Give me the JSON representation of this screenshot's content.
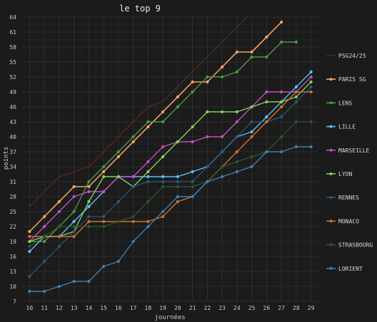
{
  "chart_data": {
    "type": "line",
    "title": "le top 9",
    "xlabel": "journées",
    "ylabel": "points",
    "x": [
      10,
      11,
      12,
      13,
      14,
      15,
      16,
      17,
      18,
      19,
      20,
      21,
      22,
      23,
      24,
      25,
      26,
      27,
      28,
      29
    ],
    "xlim": [
      9.5,
      29.5
    ],
    "ylim": [
      7,
      64
    ],
    "yticks": [
      7,
      10,
      13,
      16,
      19,
      22,
      25,
      28,
      31,
      34,
      37,
      40,
      43,
      46,
      49,
      52,
      55,
      58,
      61,
      64
    ],
    "grid": true,
    "legend_position": "right",
    "series": [
      {
        "name": "PSG24/25",
        "color": "#8b2a1e",
        "markers": false,
        "width": 0.8,
        "x": [
          10,
          11,
          12,
          13,
          14,
          15,
          16,
          17,
          18,
          19,
          20,
          21,
          22,
          23,
          24,
          25
        ],
        "values": [
          26,
          29,
          32,
          33,
          34,
          37,
          40,
          43,
          46,
          47,
          50,
          53,
          56,
          59,
          62,
          65
        ]
      },
      {
        "name": "PARIS SG",
        "color": "#f4a261",
        "markers": true,
        "width": 1.6,
        "x": [
          10,
          11,
          12,
          13,
          14,
          15,
          16,
          17,
          18,
          19,
          20,
          21,
          22,
          23,
          24,
          25,
          26,
          27
        ],
        "values": [
          21,
          24,
          27,
          30,
          30,
          33,
          36,
          39,
          42,
          45,
          48,
          51,
          51,
          54,
          57,
          57,
          60,
          63
        ]
      },
      {
        "name": "LENS",
        "color": "#4a9a46",
        "markers": true,
        "width": 1.4,
        "x": [
          10,
          11,
          12,
          13,
          14,
          15,
          16,
          17,
          18,
          19,
          20,
          21,
          22,
          23,
          24,
          25,
          26,
          27,
          28
        ],
        "values": [
          19,
          19,
          22,
          25,
          31,
          34,
          37,
          40,
          43,
          43,
          46,
          49,
          52,
          52,
          53,
          56,
          56,
          59,
          59
        ]
      },
      {
        "name": "LILLE",
        "color": "#5bc0f8",
        "markers": true,
        "width": 1.4,
        "x": [
          10,
          11,
          12,
          13,
          14,
          15,
          16,
          17,
          18,
          19,
          20,
          21,
          22,
          23,
          24,
          25,
          26,
          27,
          28,
          29
        ],
        "values": [
          17,
          20,
          20,
          23,
          26,
          29,
          32,
          32,
          32,
          32,
          32,
          33,
          34,
          37,
          40,
          41,
          44,
          47,
          50,
          53
        ]
      },
      {
        "name": "MARSEILLE",
        "color": "#c050c0",
        "markers": true,
        "width": 1.4,
        "x": [
          10,
          11,
          12,
          13,
          14,
          15,
          16,
          17,
          18,
          19,
          20,
          21,
          22,
          23,
          24,
          25,
          26,
          27,
          28,
          29
        ],
        "values": [
          19,
          22,
          25,
          28,
          29,
          29,
          32,
          32,
          35,
          38,
          39,
          39,
          40,
          40,
          43,
          46,
          49,
          49,
          49,
          52
        ]
      },
      {
        "name": "LYON",
        "color": "#86d05a",
        "markers": true,
        "width": 1.4,
        "x": [
          10,
          11,
          12,
          13,
          14,
          15,
          16,
          17,
          18,
          19,
          20,
          21,
          22,
          23,
          24,
          25,
          26,
          27,
          28,
          29
        ],
        "values": [
          19,
          20,
          20,
          21,
          27,
          32,
          32,
          30,
          33,
          36,
          39,
          42,
          45,
          45,
          45,
          46,
          47,
          47,
          48,
          51
        ]
      },
      {
        "name": "RENNES",
        "color": "#2d5a7a",
        "markers": true,
        "width": 1.2,
        "x": [
          10,
          11,
          12,
          13,
          14,
          15,
          16,
          17,
          18,
          19,
          20,
          21,
          22,
          23,
          24,
          25,
          26,
          27,
          28,
          29
        ],
        "values": [
          12,
          15,
          18,
          21,
          24,
          24,
          27,
          30,
          31,
          31,
          31,
          31,
          34,
          37,
          40,
          43,
          43,
          44,
          47,
          50
        ]
      },
      {
        "name": "MONACO",
        "color": "#d0702a",
        "markers": true,
        "width": 1.4,
        "x": [
          10,
          11,
          12,
          13,
          14,
          15,
          16,
          17,
          18,
          19,
          20,
          21,
          22,
          23,
          24,
          25,
          26,
          27,
          28,
          29
        ],
        "values": [
          20,
          20,
          20,
          20,
          23,
          23,
          23,
          23,
          23,
          24,
          27,
          28,
          31,
          34,
          37,
          40,
          43,
          46,
          49,
          49
        ]
      },
      {
        "name": "STRASBOURG",
        "color": "#2a5a2a",
        "markers": true,
        "width": 1.2,
        "x": [
          10,
          11,
          12,
          13,
          14,
          15,
          16,
          17,
          18,
          19,
          20,
          21,
          22,
          23,
          24,
          25,
          26,
          27,
          28,
          29
        ],
        "values": [
          18,
          20,
          22,
          22,
          22,
          22,
          23,
          24,
          27,
          30,
          30,
          30,
          31,
          34,
          35,
          36,
          37,
          40,
          43,
          43
        ]
      },
      {
        "name": "LORIENT",
        "color": "#3f7fb0",
        "markers": true,
        "width": 1.4,
        "x": [
          10,
          11,
          12,
          13,
          14,
          15,
          16,
          17,
          18,
          19,
          20,
          21,
          22,
          23,
          24,
          25,
          26,
          27,
          28,
          29
        ],
        "values": [
          9,
          9,
          10,
          11,
          11,
          14,
          15,
          19,
          22,
          25,
          28,
          28,
          31,
          32,
          33,
          34,
          37,
          37,
          38,
          38
        ]
      }
    ]
  }
}
